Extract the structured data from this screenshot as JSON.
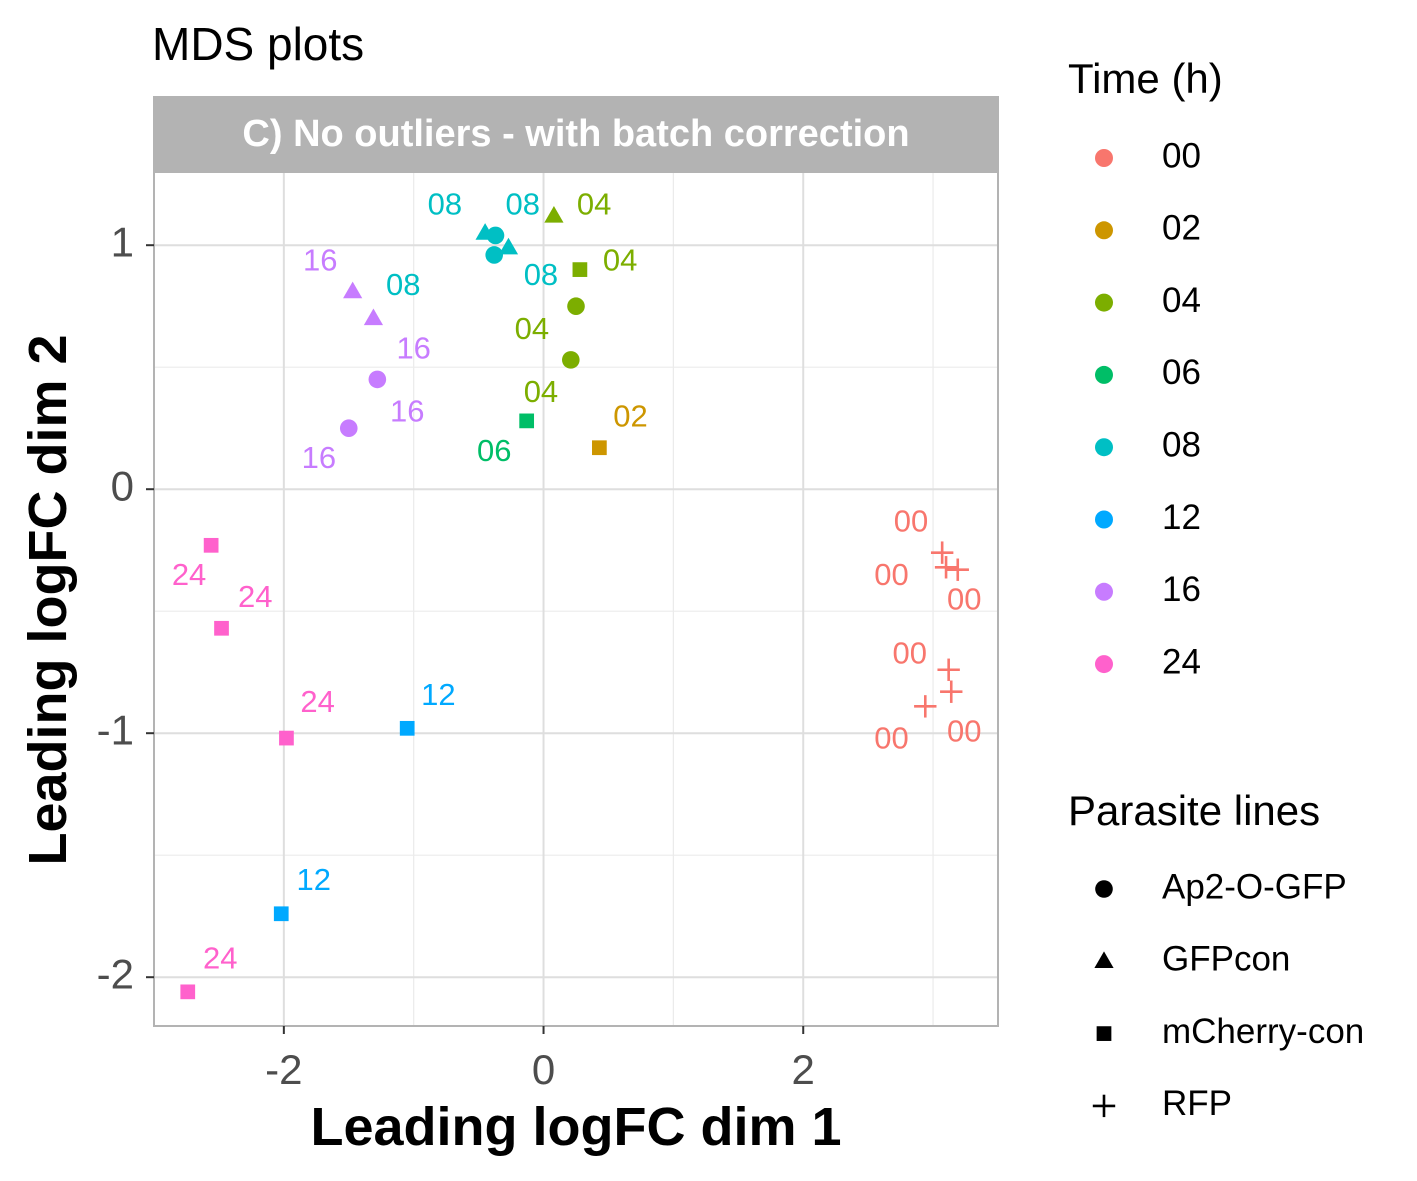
{
  "chart_data": {
    "type": "scatter",
    "title": "MDS plots",
    "panel_label": "C) No outliers - with batch correction",
    "xlabel": "Leading logFC dim 1",
    "ylabel": "Leading logFC dim 2",
    "xlim": [
      -3.0,
      3.5
    ],
    "ylim": [
      -2.2,
      1.3
    ],
    "x_ticks": [
      -2,
      0,
      2
    ],
    "x_tick_labels": [
      "-2",
      "0",
      "2"
    ],
    "y_ticks": [
      -2,
      -1,
      0,
      1
    ],
    "y_tick_labels": [
      "-2",
      "-1",
      "0",
      "1"
    ],
    "x_minor_grid": [
      -3,
      -1,
      1,
      3
    ],
    "y_minor_grid": [
      -1.5,
      -0.5,
      0.5
    ],
    "grid": true,
    "legend_position": "right",
    "color_legend": {
      "title": "Time (h)",
      "entries": [
        {
          "label": "00",
          "color": "#F8766D"
        },
        {
          "label": "02",
          "color": "#CD9600"
        },
        {
          "label": "04",
          "color": "#7CAE00"
        },
        {
          "label": "06",
          "color": "#00BE67"
        },
        {
          "label": "08",
          "color": "#00BFC4"
        },
        {
          "label": "12",
          "color": "#00A9FF"
        },
        {
          "label": "16",
          "color": "#C77CFF"
        },
        {
          "label": "24",
          "color": "#FF61CC"
        }
      ]
    },
    "shape_legend": {
      "title": "Parasite lines",
      "entries": [
        {
          "label": "Ap2-O-GFP",
          "shape": "circle"
        },
        {
          "label": "GFPcon",
          "shape": "triangle"
        },
        {
          "label": "mCherry-con",
          "shape": "square"
        },
        {
          "label": "RFP",
          "shape": "plus"
        }
      ]
    },
    "points": [
      {
        "x": -0.45,
        "y": 1.05,
        "time": "08",
        "line": "GFPcon"
      },
      {
        "x": -0.27,
        "y": 0.99,
        "time": "08",
        "line": "GFPcon"
      },
      {
        "x": 0.08,
        "y": 1.12,
        "time": "04",
        "line": "GFPcon"
      },
      {
        "x": -1.47,
        "y": 0.81,
        "time": "16",
        "line": "GFPcon"
      },
      {
        "x": -1.31,
        "y": 0.7,
        "time": "16",
        "line": "GFPcon"
      },
      {
        "x": -0.37,
        "y": 1.04,
        "time": "08",
        "line": "Ap2-O-GFP"
      },
      {
        "x": -0.38,
        "y": 0.96,
        "time": "08",
        "line": "Ap2-O-GFP"
      },
      {
        "x": 0.25,
        "y": 0.75,
        "time": "04",
        "line": "Ap2-O-GFP"
      },
      {
        "x": 0.21,
        "y": 0.53,
        "time": "04",
        "line": "Ap2-O-GFP"
      },
      {
        "x": -1.28,
        "y": 0.45,
        "time": "16",
        "line": "Ap2-O-GFP"
      },
      {
        "x": -1.5,
        "y": 0.25,
        "time": "16",
        "line": "Ap2-O-GFP"
      },
      {
        "x": 0.28,
        "y": 0.9,
        "time": "04",
        "line": "mCherry-con"
      },
      {
        "x": -0.13,
        "y": 0.28,
        "time": "06",
        "line": "mCherry-con"
      },
      {
        "x": 0.43,
        "y": 0.17,
        "time": "02",
        "line": "mCherry-con"
      },
      {
        "x": -2.56,
        "y": -0.23,
        "time": "24",
        "line": "mCherry-con"
      },
      {
        "x": -2.48,
        "y": -0.57,
        "time": "24",
        "line": "mCherry-con"
      },
      {
        "x": -1.98,
        "y": -1.02,
        "time": "24",
        "line": "mCherry-con"
      },
      {
        "x": -1.05,
        "y": -0.98,
        "time": "12",
        "line": "mCherry-con"
      },
      {
        "x": -2.02,
        "y": -1.74,
        "time": "12",
        "line": "mCherry-con"
      },
      {
        "x": -2.74,
        "y": -2.06,
        "time": "24",
        "line": "mCherry-con"
      },
      {
        "x": 3.07,
        "y": -0.26,
        "time": "00",
        "line": "RFP"
      },
      {
        "x": 3.1,
        "y": -0.32,
        "time": "00",
        "line": "RFP"
      },
      {
        "x": 3.19,
        "y": -0.33,
        "time": "00",
        "line": "RFP"
      },
      {
        "x": 3.12,
        "y": -0.74,
        "time": "00",
        "line": "RFP"
      },
      {
        "x": 3.14,
        "y": -0.83,
        "time": "00",
        "line": "RFP"
      },
      {
        "x": 2.94,
        "y": -0.89,
        "time": "00",
        "line": "RFP"
      }
    ],
    "point_labels": [
      {
        "text": "08",
        "x": -0.76,
        "y": 1.16,
        "time": "08"
      },
      {
        "text": "08",
        "x": -0.16,
        "y": 1.16,
        "time": "08"
      },
      {
        "text": "04",
        "x": 0.39,
        "y": 1.16,
        "time": "04"
      },
      {
        "text": "04",
        "x": 0.59,
        "y": 0.93,
        "time": "04"
      },
      {
        "text": "08",
        "x": -1.08,
        "y": 0.83,
        "time": "08"
      },
      {
        "text": "08",
        "x": -0.02,
        "y": 0.87,
        "time": "08"
      },
      {
        "text": "16",
        "x": -1.72,
        "y": 0.93,
        "time": "16"
      },
      {
        "text": "04",
        "x": -0.09,
        "y": 0.65,
        "time": "04"
      },
      {
        "text": "16",
        "x": -1.0,
        "y": 0.57,
        "time": "16"
      },
      {
        "text": "04",
        "x": -0.02,
        "y": 0.39,
        "time": "04"
      },
      {
        "text": "16",
        "x": -1.05,
        "y": 0.31,
        "time": "16"
      },
      {
        "text": "02",
        "x": 0.67,
        "y": 0.29,
        "time": "02"
      },
      {
        "text": "06",
        "x": -0.38,
        "y": 0.15,
        "time": "06"
      },
      {
        "text": "16",
        "x": -1.73,
        "y": 0.12,
        "time": "16"
      },
      {
        "text": "00",
        "x": 2.83,
        "y": -0.14,
        "time": "00"
      },
      {
        "text": "00",
        "x": 2.68,
        "y": -0.36,
        "time": "00"
      },
      {
        "text": "00",
        "x": 3.24,
        "y": -0.46,
        "time": "00"
      },
      {
        "text": "24",
        "x": -2.73,
        "y": -0.36,
        "time": "24"
      },
      {
        "text": "24",
        "x": -2.22,
        "y": -0.45,
        "time": "24"
      },
      {
        "text": "00",
        "x": 2.82,
        "y": -0.68,
        "time": "00"
      },
      {
        "text": "12",
        "x": -0.81,
        "y": -0.85,
        "time": "12"
      },
      {
        "text": "24",
        "x": -1.74,
        "y": -0.88,
        "time": "24"
      },
      {
        "text": "00",
        "x": 3.24,
        "y": -1.0,
        "time": "00"
      },
      {
        "text": "00",
        "x": 2.68,
        "y": -1.03,
        "time": "00"
      },
      {
        "text": "12",
        "x": -1.77,
        "y": -1.61,
        "time": "12"
      },
      {
        "text": "24",
        "x": -2.49,
        "y": -1.93,
        "time": "24"
      }
    ]
  }
}
